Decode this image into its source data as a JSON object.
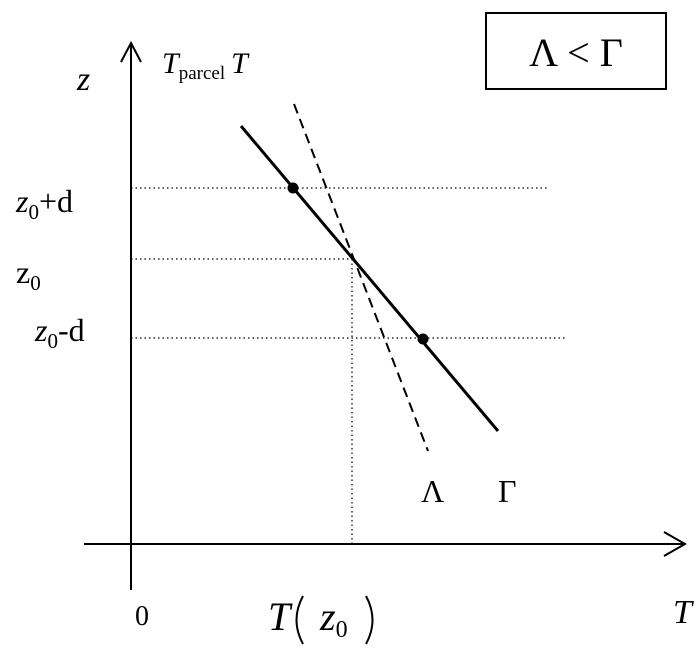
{
  "condition_box": {
    "text": "Λ < Γ"
  },
  "axes": {
    "y_symbol": "z",
    "x_symbol": "T",
    "origin_label": "0",
    "y_axis_caption": {
      "main": "T",
      "subscript": "parcel",
      "tail": "T"
    }
  },
  "levels": {
    "upper": {
      "base": "z",
      "sub": "0",
      "suffix": "+d"
    },
    "middle": {
      "base": "z",
      "sub": "0"
    },
    "lower": {
      "base": "z",
      "sub": "0",
      "suffix": "-d"
    }
  },
  "x_marker": {
    "func": "T",
    "arg_base": "z",
    "arg_sub": "0"
  },
  "lines": {
    "environment": {
      "label": "Λ",
      "style": "dashed"
    },
    "parcel": {
      "label": "Γ",
      "style": "solid"
    }
  }
}
